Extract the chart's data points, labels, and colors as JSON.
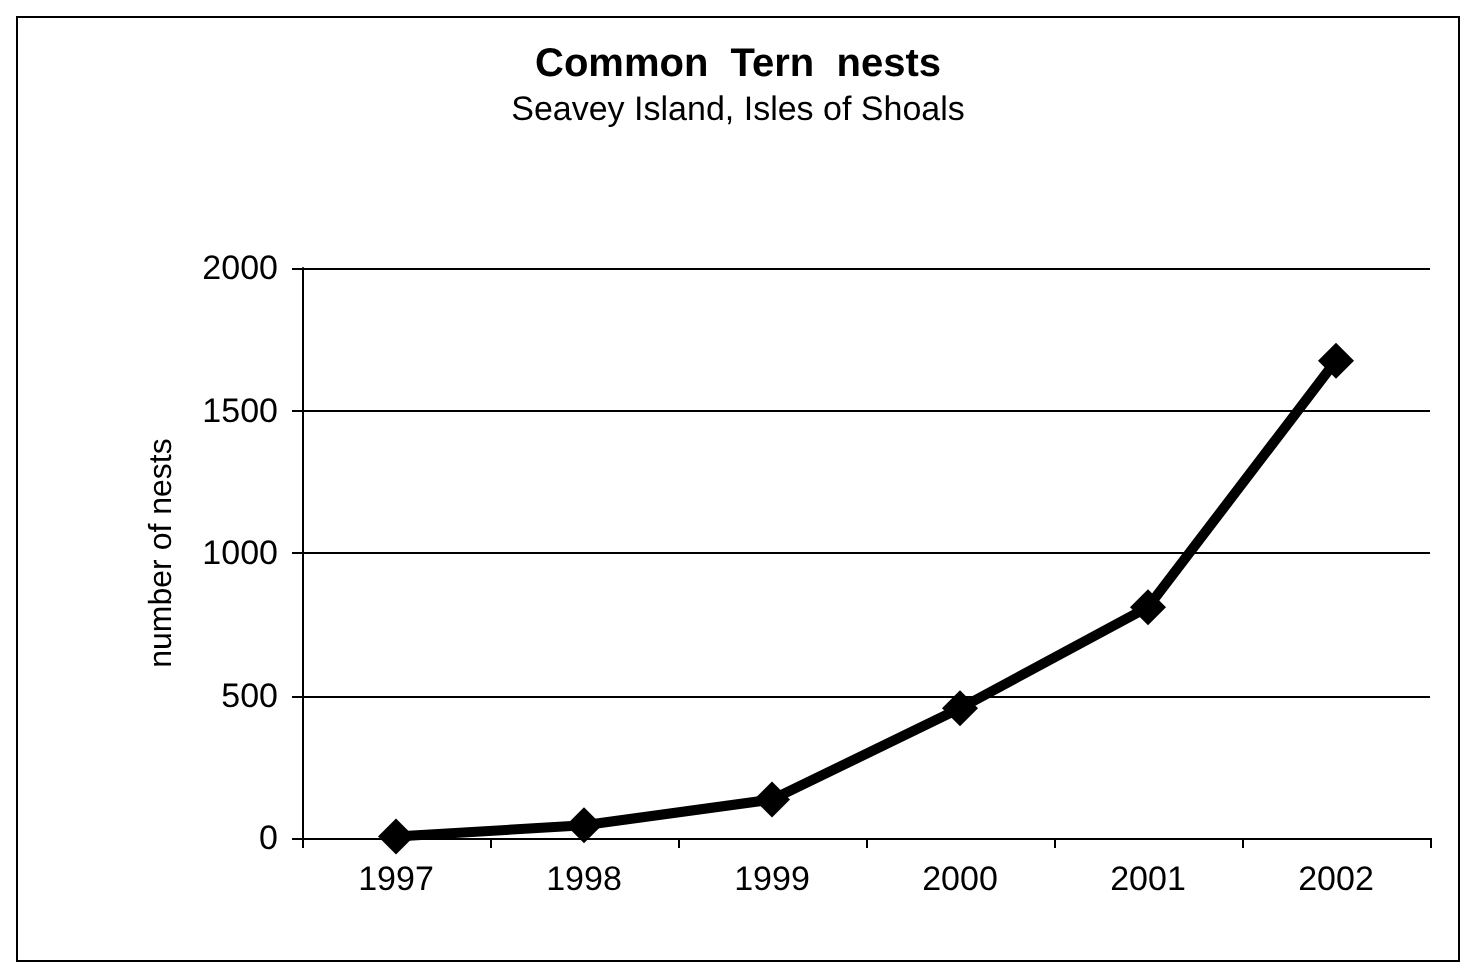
{
  "chart_data": {
    "type": "line",
    "title": "Common  Tern  nests",
    "subtitle": "Seavey Island, Isles of Shoals",
    "ylabel": "number of nests",
    "categories": [
      "1997",
      "1998",
      "1999",
      "2000",
      "2001",
      "2002"
    ],
    "series": [
      {
        "color": "#000000",
        "values": [
          5,
          45,
          135,
          455,
          810,
          1675
        ]
      }
    ],
    "ylim": [
      0,
      2000
    ],
    "yticks": [
      0,
      500,
      1000,
      1500,
      2000
    ],
    "grid": "y",
    "marker": "diamond",
    "line_style": "solid"
  }
}
